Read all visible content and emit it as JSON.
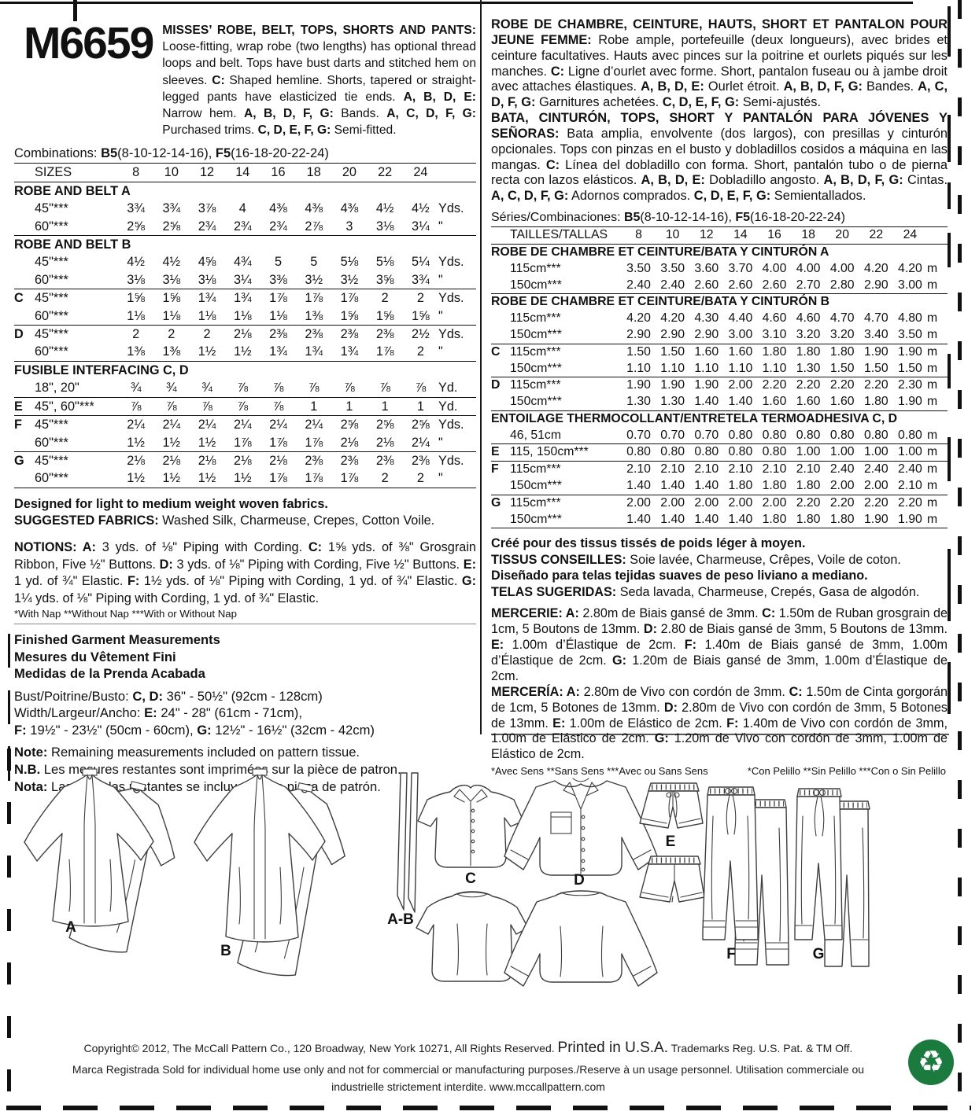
{
  "pattern_number": "M6659",
  "description_en": [
    {
      "t": "MISSES’ ROBE, BELT, TOPS, SHORTS AND PANTS:",
      "b": true
    },
    {
      "t": " Loose-fitting, wrap robe (two lengths) has optional thread loops and belt. Tops have bust darts and stitched hem on sleeves. "
    },
    {
      "t": "C:",
      "b": true
    },
    {
      "t": " Shaped hemline. Shorts, tapered or straight-legged pants have elasticized tie ends. "
    },
    {
      "t": "A, B, D, E:",
      "b": true
    },
    {
      "t": " Narrow hem. "
    },
    {
      "t": "A, B, D, F, G:",
      "b": true
    },
    {
      "t": " Bands. "
    },
    {
      "t": "A, C, D, F, G:",
      "b": true
    },
    {
      "t": " Purchased trims. "
    },
    {
      "t": "C, D, E, F, G:",
      "b": true
    },
    {
      "t": " Semi-fitted."
    }
  ],
  "combinations": [
    {
      "t": "Combinations: "
    },
    {
      "t": "B5",
      "b": true
    },
    {
      "t": "(8-10-12-14-16), "
    },
    {
      "t": "F5",
      "b": true
    },
    {
      "t": "(16-18-20-22-24)"
    }
  ],
  "tables": {
    "en": {
      "rows": [
        {
          "lab": "SIZES",
          "v": [
            "8",
            "10",
            "12",
            "14",
            "16",
            "18",
            "20",
            "22",
            "24"
          ],
          "u": ""
        },
        {
          "s": "ROBE AND BELT A",
          "r": true
        },
        {
          "lab": "45\"***",
          "v": [
            "3¾",
            "3¾",
            "3⅞",
            "4",
            "4⅜",
            "4⅜",
            "4⅜",
            "4½",
            "4½"
          ],
          "u": "Yds."
        },
        {
          "lab": "60\"***",
          "v": [
            "2⅝",
            "2⅝",
            "2¾",
            "2¾",
            "2¾",
            "2⅞",
            "3",
            "3⅛",
            "3¼"
          ],
          "u": "\""
        },
        {
          "s": "ROBE AND BELT B",
          "r": true
        },
        {
          "lab": "45\"***",
          "v": [
            "4½",
            "4½",
            "4⅝",
            "4¾",
            "5",
            "5",
            "5⅛",
            "5⅛",
            "5¼"
          ],
          "u": "Yds."
        },
        {
          "lab": "60\"***",
          "v": [
            "3⅛",
            "3⅛",
            "3⅛",
            "3¼",
            "3⅜",
            "3½",
            "3½",
            "3⅝",
            "3¾"
          ],
          "u": "\""
        },
        {
          "l": "C",
          "lab": "45\"***",
          "v": [
            "1⅝",
            "1⅝",
            "1¾",
            "1¾",
            "1⅞",
            "1⅞",
            "1⅞",
            "2",
            "2"
          ],
          "u": "Yds.",
          "r": true
        },
        {
          "lab": "60\"***",
          "v": [
            "1⅛",
            "1⅛",
            "1⅛",
            "1⅛",
            "1⅛",
            "1⅜",
            "1⅝",
            "1⅝",
            "1⅝"
          ],
          "u": "\""
        },
        {
          "l": "D",
          "lab": "45\"***",
          "v": [
            "2",
            "2",
            "2",
            "2⅛",
            "2⅜",
            "2⅜",
            "2⅜",
            "2⅜",
            "2½"
          ],
          "u": "Yds.",
          "r": true
        },
        {
          "lab": "60\"***",
          "v": [
            "1⅜",
            "1⅜",
            "1½",
            "1½",
            "1¾",
            "1¾",
            "1¾",
            "1⅞",
            "2"
          ],
          "u": "\""
        },
        {
          "s": "FUSIBLE INTERFACING C, D",
          "r": true
        },
        {
          "lab": "18\", 20\"",
          "v": [
            "¾",
            "¾",
            "¾",
            "⅞",
            "⅞",
            "⅞",
            "⅞",
            "⅞",
            "⅞"
          ],
          "u": "Yd."
        },
        {
          "l": "E",
          "lab": "45\", 60\"***",
          "v": [
            "⅞",
            "⅞",
            "⅞",
            "⅞",
            "⅞",
            "1",
            "1",
            "1",
            "1"
          ],
          "u": "Yd.",
          "r": true
        },
        {
          "l": "F",
          "lab": "45\"***",
          "v": [
            "2¼",
            "2¼",
            "2¼",
            "2¼",
            "2¼",
            "2¼",
            "2⅝",
            "2⅝",
            "2⅝"
          ],
          "u": "Yds.",
          "r": true
        },
        {
          "lab": "60\"***",
          "v": [
            "1½",
            "1½",
            "1½",
            "1⅞",
            "1⅞",
            "1⅞",
            "2⅛",
            "2⅛",
            "2¼"
          ],
          "u": "\""
        },
        {
          "l": "G",
          "lab": "45\"***",
          "v": [
            "2⅛",
            "2⅛",
            "2⅛",
            "2⅛",
            "2⅛",
            "2⅜",
            "2⅜",
            "2⅜",
            "2⅜"
          ],
          "u": "Yds.",
          "r": true
        },
        {
          "lab": "60\"***",
          "v": [
            "1½",
            "1½",
            "1½",
            "1½",
            "1⅞",
            "1⅞",
            "1⅞",
            "2",
            "2"
          ],
          "u": "\""
        }
      ]
    },
    "metric": {
      "rows": [
        {
          "lab": "TAILLES/TALLAS",
          "v": [
            "8",
            "10",
            "12",
            "14",
            "16",
            "18",
            "20",
            "22",
            "24"
          ],
          "u": ""
        },
        {
          "s": "ROBE DE CHAMBRE ET CEINTURE/BATA Y CINTURÓN A",
          "r": true
        },
        {
          "lab": "115cm***",
          "v": [
            "3.50",
            "3.50",
            "3.60",
            "3.70",
            "4.00",
            "4.00",
            "4.00",
            "4.20",
            "4.20"
          ],
          "u": "m"
        },
        {
          "lab": "150cm***",
          "v": [
            "2.40",
            "2.40",
            "2.60",
            "2.60",
            "2.60",
            "2.70",
            "2.80",
            "2.90",
            "3.00"
          ],
          "u": "m"
        },
        {
          "s": "ROBE DE CHAMBRE ET CEINTURE/BATA Y CINTURÓN B",
          "r": true
        },
        {
          "lab": "115cm***",
          "v": [
            "4.20",
            "4.20",
            "4.30",
            "4.40",
            "4.60",
            "4.60",
            "4.70",
            "4.70",
            "4.80"
          ],
          "u": "m"
        },
        {
          "lab": "150cm***",
          "v": [
            "2.90",
            "2.90",
            "2.90",
            "3.00",
            "3.10",
            "3.20",
            "3.20",
            "3.40",
            "3.50"
          ],
          "u": "m"
        },
        {
          "l": "C",
          "lab": "115cm***",
          "v": [
            "1.50",
            "1.50",
            "1.60",
            "1.60",
            "1.80",
            "1.80",
            "1.80",
            "1.90",
            "1.90"
          ],
          "u": "m",
          "r": true
        },
        {
          "lab": "150cm***",
          "v": [
            "1.10",
            "1.10",
            "1.10",
            "1.10",
            "1.10",
            "1.30",
            "1.50",
            "1.50",
            "1.50"
          ],
          "u": "m"
        },
        {
          "l": "D",
          "lab": "115cm***",
          "v": [
            "1.90",
            "1.90",
            "1.90",
            "2.00",
            "2.20",
            "2.20",
            "2.20",
            "2.20",
            "2.30"
          ],
          "u": "m",
          "r": true
        },
        {
          "lab": "150cm***",
          "v": [
            "1.30",
            "1.30",
            "1.40",
            "1.40",
            "1.60",
            "1.60",
            "1.60",
            "1.80",
            "1.90"
          ],
          "u": "m"
        },
        {
          "s": "ENTOILAGE THERMOCOLLANT/ENTRETELA TERMOADHESIVA C, D",
          "r": true
        },
        {
          "lab": "46, 51cm",
          "v": [
            "0.70",
            "0.70",
            "0.70",
            "0.80",
            "0.80",
            "0.80",
            "0.80",
            "0.80",
            "0.80"
          ],
          "u": "m"
        },
        {
          "l": "E",
          "lab": "115, 150cm***",
          "v": [
            "0.80",
            "0.80",
            "0.80",
            "0.80",
            "0.80",
            "1.00",
            "1.00",
            "1.00",
            "1.00"
          ],
          "u": "m",
          "r": true
        },
        {
          "l": "F",
          "lab": "115cm***",
          "v": [
            "2.10",
            "2.10",
            "2.10",
            "2.10",
            "2.10",
            "2.10",
            "2.40",
            "2.40",
            "2.40"
          ],
          "u": "m",
          "r": true
        },
        {
          "lab": "150cm***",
          "v": [
            "1.40",
            "1.40",
            "1.40",
            "1.80",
            "1.80",
            "1.80",
            "2.00",
            "2.00",
            "2.10"
          ],
          "u": "m"
        },
        {
          "l": "G",
          "lab": "115cm***",
          "v": [
            "2.00",
            "2.00",
            "2.00",
            "2.00",
            "2.00",
            "2.20",
            "2.20",
            "2.20",
            "2.20"
          ],
          "u": "m",
          "r": true
        },
        {
          "lab": "150cm***",
          "v": [
            "1.40",
            "1.40",
            "1.40",
            "1.40",
            "1.80",
            "1.80",
            "1.80",
            "1.90",
            "1.90"
          ],
          "u": "m"
        }
      ]
    }
  },
  "fabrics_en": {
    "line1": [
      {
        "t": "Designed for light to medium weight woven fabrics.",
        "b": true
      }
    ],
    "line2": [
      {
        "t": "SUGGESTED FABRICS:",
        "b": true
      },
      {
        "t": " Washed Silk, Charmeuse, Crepes, Cotton Voile."
      }
    ]
  },
  "notions_en": [
    {
      "t": "NOTIONS: A:",
      "b": true
    },
    {
      "t": " 3 yds. of ⅛\" Piping with Cording. "
    },
    {
      "t": "C:",
      "b": true
    },
    {
      "t": " 1⅝ yds. of ⅜\" Grosgrain Ribbon, Five ½\" Buttons. "
    },
    {
      "t": "D:",
      "b": true
    },
    {
      "t": " 3 yds. of ⅛\" Piping with Cording, Five ½\" Buttons. "
    },
    {
      "t": "E:",
      "b": true
    },
    {
      "t": " 1 yd. of ¾\" Elastic. "
    },
    {
      "t": "F:",
      "b": true
    },
    {
      "t": " 1½ yds. of ⅛\" Piping with Cording, 1 yd. of ¾\" Elastic. "
    },
    {
      "t": "G:",
      "b": true
    },
    {
      "t": " 1¼ yds. of ⅛\" Piping with Cording, 1 yd. of ¾\" Elastic."
    }
  ],
  "nap_note_en": "*With Nap **Without Nap ***With or Without Nap",
  "measurements": {
    "titles": [
      "Finished Garment Measurements",
      "Mesures du Vêtement Fini",
      "Medidas de la Prenda Acabada"
    ],
    "bust": [
      {
        "t": "Bust/Poitrine/Busto: "
      },
      {
        "t": "C, D:",
        "b": true
      },
      {
        "t": " 36\" - 50½\" (92cm - 128cm)"
      }
    ],
    "width": [
      {
        "t": "Width/Largeur/Ancho: "
      },
      {
        "t": "E:",
        "b": true
      },
      {
        "t": " 24\" - 28\" (61cm - 71cm),"
      }
    ],
    "width2": [
      {
        "t": "F:",
        "b": true
      },
      {
        "t": " 19½\" - 23½\" (50cm - 60cm), "
      },
      {
        "t": "G:",
        "b": true
      },
      {
        "t": " 12½\" - 16½\" (32cm - 42cm)"
      }
    ],
    "note": [
      {
        "t": "Note:",
        "b": true
      },
      {
        "t": " Remaining measurements included on pattern tissue."
      }
    ],
    "nb": [
      {
        "t": "N.B.",
        "b": true
      },
      {
        "t": " Les mesures restantes sont imprimées sur la pièce de patron."
      }
    ],
    "nota": [
      {
        "t": "Nota:",
        "b": true
      },
      {
        "t": " Las medidas restantes se incluyen en la pieza de patrón."
      }
    ]
  },
  "description_fr": [
    {
      "t": "ROBE DE CHAMBRE, CEINTURE, HAUTS, SHORT ET PANTALON POUR JEUNE FEMME:",
      "b": true
    },
    {
      "t": " Robe ample, portefeuille (deux longueurs), avec brides et ceinture facultatives. Hauts avec pinces sur la poitrine et ourlets piqués sur les manches. "
    },
    {
      "t": "C:",
      "b": true
    },
    {
      "t": " Ligne d’ourlet avec forme. Short, pantalon fuseau ou à jambe droit avec attaches élastiques. "
    },
    {
      "t": "A, B, D, E:",
      "b": true
    },
    {
      "t": " Ourlet étroit. "
    },
    {
      "t": "A, B, D, F, G:",
      "b": true
    },
    {
      "t": " Bandes. "
    },
    {
      "t": "A, C, D, F, G:",
      "b": true
    },
    {
      "t": " Garnitures achetées. "
    },
    {
      "t": "C, D, E, F, G:",
      "b": true
    },
    {
      "t": " Semi-ajustés."
    }
  ],
  "description_es": [
    {
      "t": "BATA, CINTURÓN, TOPS, SHORT Y PANTALÓN PARA JÓVENES Y SEÑORAS:",
      "b": true
    },
    {
      "t": " Bata amplia, envolvente (dos largos), con presillas y cinturón opcionales. Tops con pinzas en el busto y dobladillos cosidos a máquina en las mangas. "
    },
    {
      "t": "C:",
      "b": true
    },
    {
      "t": " Línea del dobladillo con forma. Short, pantalón tubo o de pierna recta con lazos elásticos. "
    },
    {
      "t": "A, B, D, E:",
      "b": true
    },
    {
      "t": " Dobladillo angosto. "
    },
    {
      "t": "A, B, D, F, G:",
      "b": true
    },
    {
      "t": " Cintas. "
    },
    {
      "t": "A, C, D, F, G:",
      "b": true
    },
    {
      "t": " Adornos comprados. "
    },
    {
      "t": "C, D, E, F, G:",
      "b": true
    },
    {
      "t": " Semientallados."
    }
  ],
  "series_line": [
    {
      "t": "Séries/Combinaciones: "
    },
    {
      "t": "B5",
      "b": true
    },
    {
      "t": "(8-10-12-14-16), "
    },
    {
      "t": "F5",
      "b": true
    },
    {
      "t": "(16-18-20-22-24)"
    }
  ],
  "fabrics_intl": {
    "line1": [
      {
        "t": "Créé pour des tissus tissés de poids léger à moyen.",
        "b": true
      }
    ],
    "line2": [
      {
        "t": "TISSUS CONSEILLES:",
        "b": true
      },
      {
        "t": " Soie lavée, Charmeuse, Crêpes, Voile de coton."
      }
    ],
    "line3": [
      {
        "t": "Diseñado para telas tejidas suaves de peso liviano a mediano.",
        "b": true
      }
    ],
    "line4": [
      {
        "t": "TELAS SUGERIDAS:",
        "b": true
      },
      {
        "t": " Seda lavada, Charmeuse, Crepés, Gasa de algodón."
      }
    ]
  },
  "mercerie": [
    {
      "t": "MERCERIE: A:",
      "b": true
    },
    {
      "t": " 2.80m de Biais gansé de 3mm. "
    },
    {
      "t": "C:",
      "b": true
    },
    {
      "t": " 1.50m de Ruban grosgrain de 1cm, 5 Boutons de 13mm. "
    },
    {
      "t": "D:",
      "b": true
    },
    {
      "t": " 2.80 de Biais gansé de 3mm, 5 Boutons de 13mm. "
    },
    {
      "t": "E:",
      "b": true
    },
    {
      "t": " 1.00m d’Élastique de 2cm. "
    },
    {
      "t": "F:",
      "b": true
    },
    {
      "t": " 1.40m de Biais gansé de 3mm, 1.00m d’Élastique de 2cm. "
    },
    {
      "t": "G:",
      "b": true
    },
    {
      "t": " 1.20m de Biais gansé de 3mm, 1.00m d’Élastique de 2cm."
    }
  ],
  "merceria": [
    {
      "t": "MERCERÍA: A:",
      "b": true
    },
    {
      "t": " 2.80m de Vivo con cordón de 3mm. "
    },
    {
      "t": "C:",
      "b": true
    },
    {
      "t": " 1.50m de Cinta gorgorán de 1cm, 5 Botones de 13mm. "
    },
    {
      "t": "D:",
      "b": true
    },
    {
      "t": " 2.80m de Vivo con cordón de 3mm, 5 Botones de 13mm. "
    },
    {
      "t": "E:",
      "b": true
    },
    {
      "t": " 1.00m de Elástico de 2cm. "
    },
    {
      "t": "F:",
      "b": true
    },
    {
      "t": " 1.40m de Vivo con cordón de 3mm, 1.00m de Elástico de 2cm. "
    },
    {
      "t": "G:",
      "b": true
    },
    {
      "t": " 1.20m de Vivo con cordón de 3mm, 1.00m de Elástico de 2cm."
    }
  ],
  "nap_note_intl": {
    "fr": "*Avec Sens **Sans Sens ***Avec ou Sans Sens",
    "es": "*Con Pelillo **Sin Pelillo ***Con o Sin Pelillo"
  },
  "figures": {
    "robe_a": "A",
    "robe_b": "B",
    "belt": "A-B",
    "top_c": "C",
    "shirt_d": "D",
    "shorts_e": "E",
    "pants_f": "F",
    "pants_g": "G"
  },
  "footer": {
    "copyright": "Copyright© 2012,  The McCall Pattern Co., 120 Broadway, New York 10271, All Rights Reserved.",
    "printed": "Printed in U.S.A.",
    "trademark": "Trademarks Reg. U.S. Pat. & TM Off.",
    "line2": "Marca Registrada  Sold for individual home use only and not for commercial or manufacturing purposes./Reserve à un usage personnel. Utilisation commerciale ou",
    "line3": "industrielle strictement interdite. www.mccallpattern.com",
    "recycle_symbol": "♻"
  }
}
